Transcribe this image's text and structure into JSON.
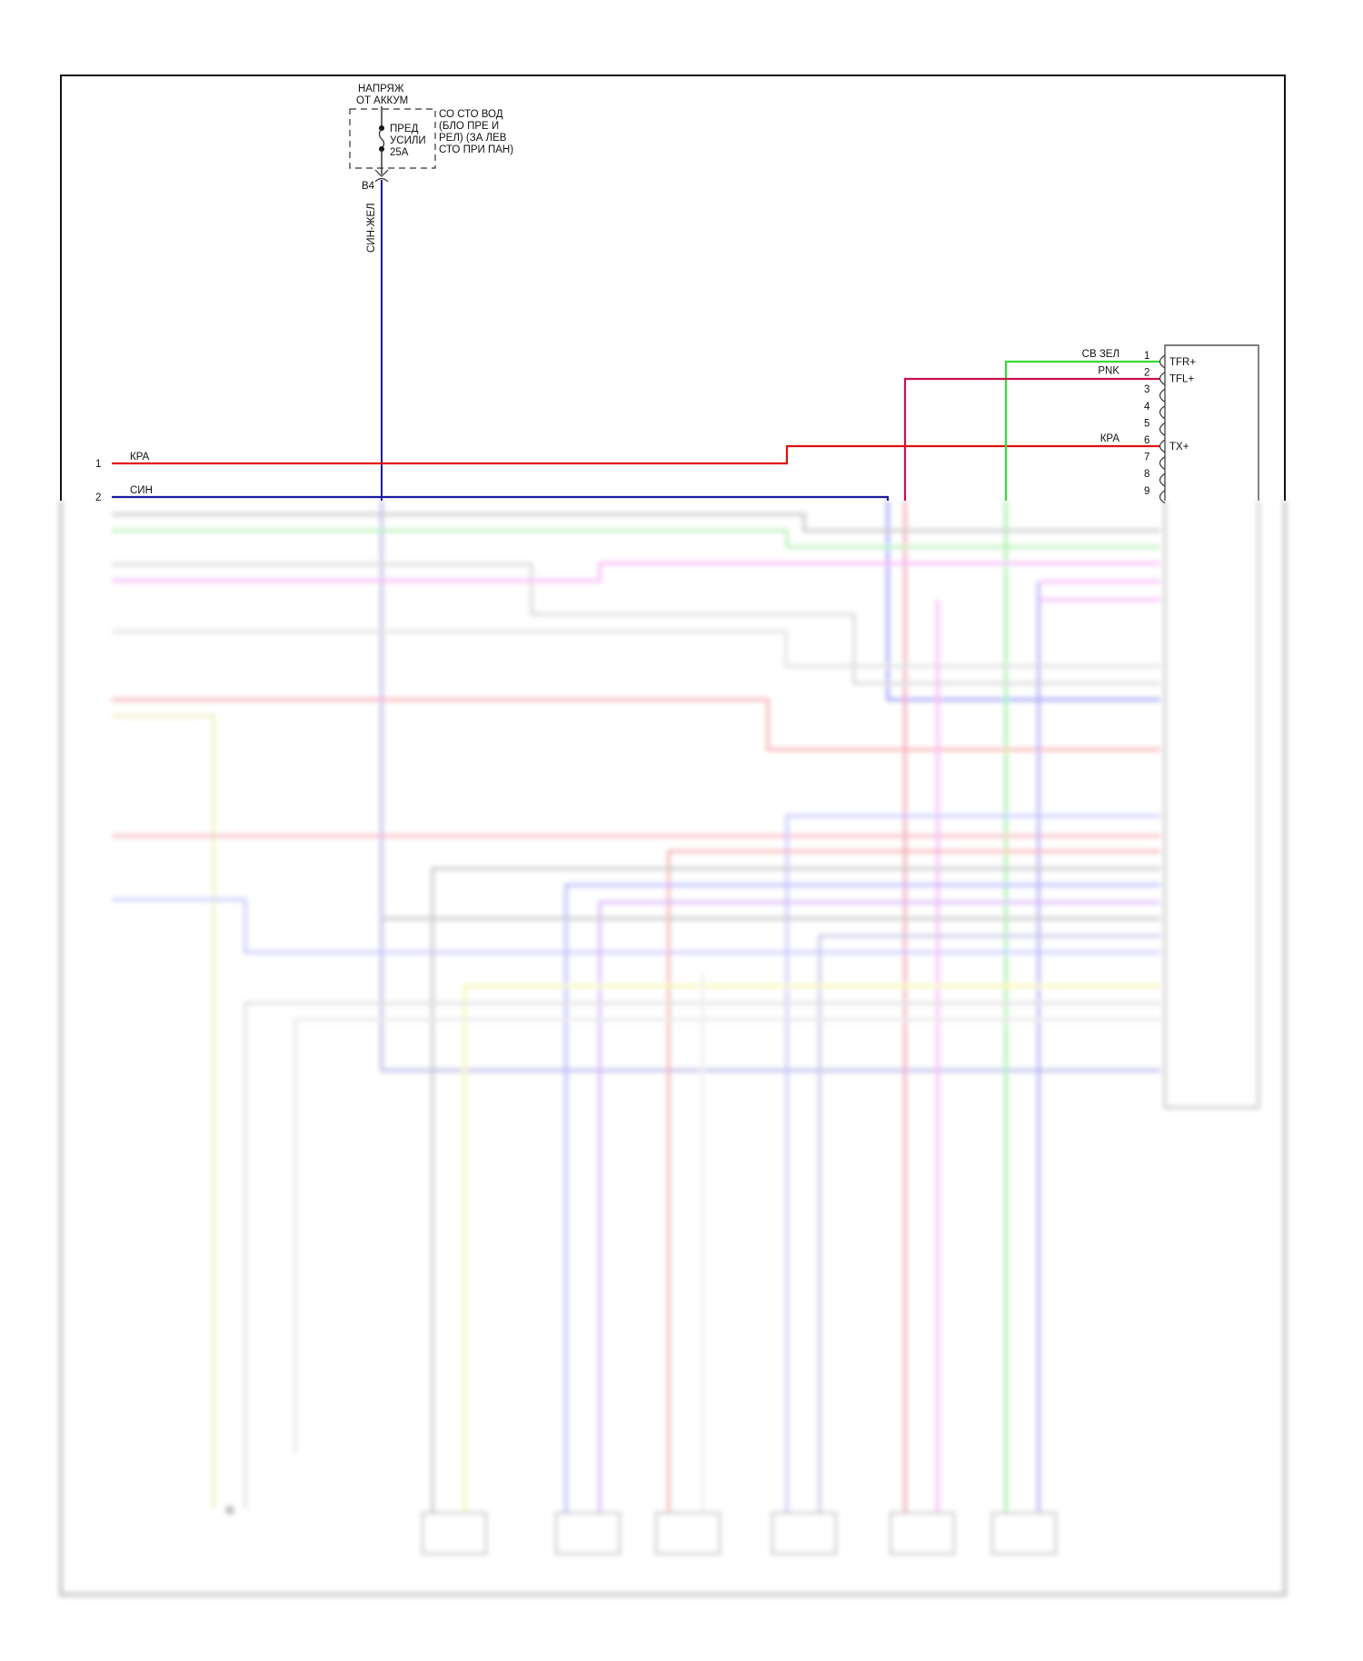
{
  "source": {
    "label_line1": "НАПРЯЖ",
    "label_line2": "ОТ АККУМ"
  },
  "fuse": {
    "name_line1": "ПРЕД",
    "name_line2": "УСИЛИ",
    "rating": "25A",
    "location_lines": [
      "СО СТО ВОД",
      "(БЛО ПРЕ И",
      "РЕЛ) (ЗА ЛЕВ",
      "СТО ПРИ ПАН)"
    ],
    "connector": "B4",
    "wire_color": "СИН-ЖЕЛ"
  },
  "left_pins": [
    {
      "num": "1",
      "wire": "КРА"
    },
    {
      "num": "2",
      "wire": "СИН"
    }
  ],
  "right_connector": {
    "pins": [
      {
        "num": "1",
        "wire": "СВ ЗЕЛ",
        "signal": "TFR+"
      },
      {
        "num": "2",
        "wire": "PNK",
        "signal": "TFL+"
      },
      {
        "num": "3",
        "wire": "",
        "signal": ""
      },
      {
        "num": "4",
        "wire": "",
        "signal": ""
      },
      {
        "num": "5",
        "wire": "",
        "signal": ""
      },
      {
        "num": "6",
        "wire": "КРА",
        "signal": "TX+"
      },
      {
        "num": "7",
        "wire": "",
        "signal": ""
      },
      {
        "num": "8",
        "wire": "",
        "signal": ""
      },
      {
        "num": "9",
        "wire": "",
        "signal": ""
      }
    ]
  },
  "colors": {
    "red": "#e01010",
    "blue": "#1a1aa0",
    "green": "#33dd33",
    "pink": "#c8124a",
    "frame": "#111111"
  }
}
